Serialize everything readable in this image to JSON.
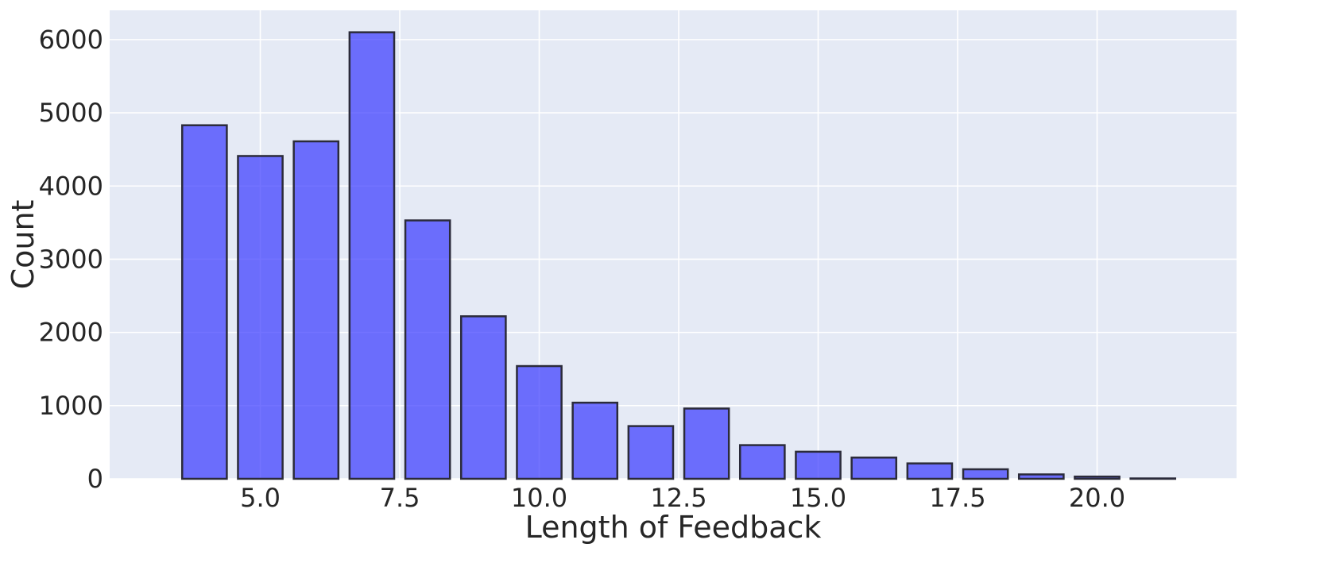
{
  "chart_data": {
    "type": "bar",
    "title": "",
    "xlabel": "Length of Feedback",
    "ylabel": "Count",
    "x": [
      4,
      5,
      6,
      7,
      8,
      9,
      10,
      11,
      12,
      13,
      14,
      15,
      16,
      17,
      18,
      19,
      20,
      21
    ],
    "values": [
      4830,
      4410,
      4610,
      6100,
      3530,
      2220,
      1540,
      1040,
      720,
      960,
      460,
      370,
      290,
      210,
      130,
      60,
      30,
      5
    ],
    "xlim": [
      2.3,
      22.5
    ],
    "ylim": [
      0,
      6400
    ],
    "xticks": [
      5.0,
      7.5,
      10.0,
      12.5,
      15.0,
      17.5,
      20.0
    ],
    "xtick_labels": [
      "5.0",
      "7.5",
      "10.0",
      "12.5",
      "15.0",
      "17.5",
      "20.0"
    ],
    "yticks": [
      0,
      1000,
      2000,
      3000,
      4000,
      5000,
      6000
    ],
    "ytick_labels": [
      "0",
      "1000",
      "2000",
      "3000",
      "4000",
      "5000",
      "6000"
    ],
    "grid": true,
    "colors": {
      "bar_fill": "#3838ff",
      "bar_edge": "#2b2b3a",
      "plot_background": "#e5eaf5",
      "grid": "#ffffff"
    }
  }
}
